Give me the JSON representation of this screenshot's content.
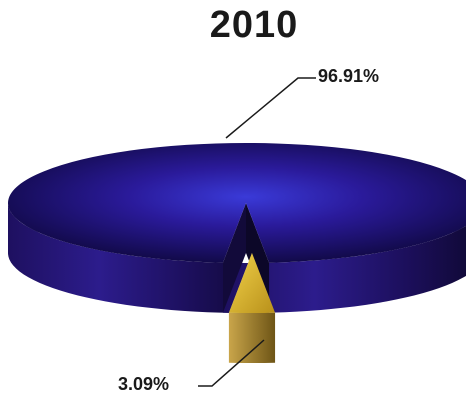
{
  "chart_data": {
    "type": "pie",
    "title": "2010",
    "categories": [
      "",
      ""
    ],
    "values": [
      96.91,
      3.09
    ],
    "labels": [
      "96.91%",
      "3.09%"
    ],
    "colors": [
      "#2a1a8a",
      "#c9a21a"
    ],
    "legend": "none",
    "grid": false,
    "style": "3d-exploded"
  }
}
